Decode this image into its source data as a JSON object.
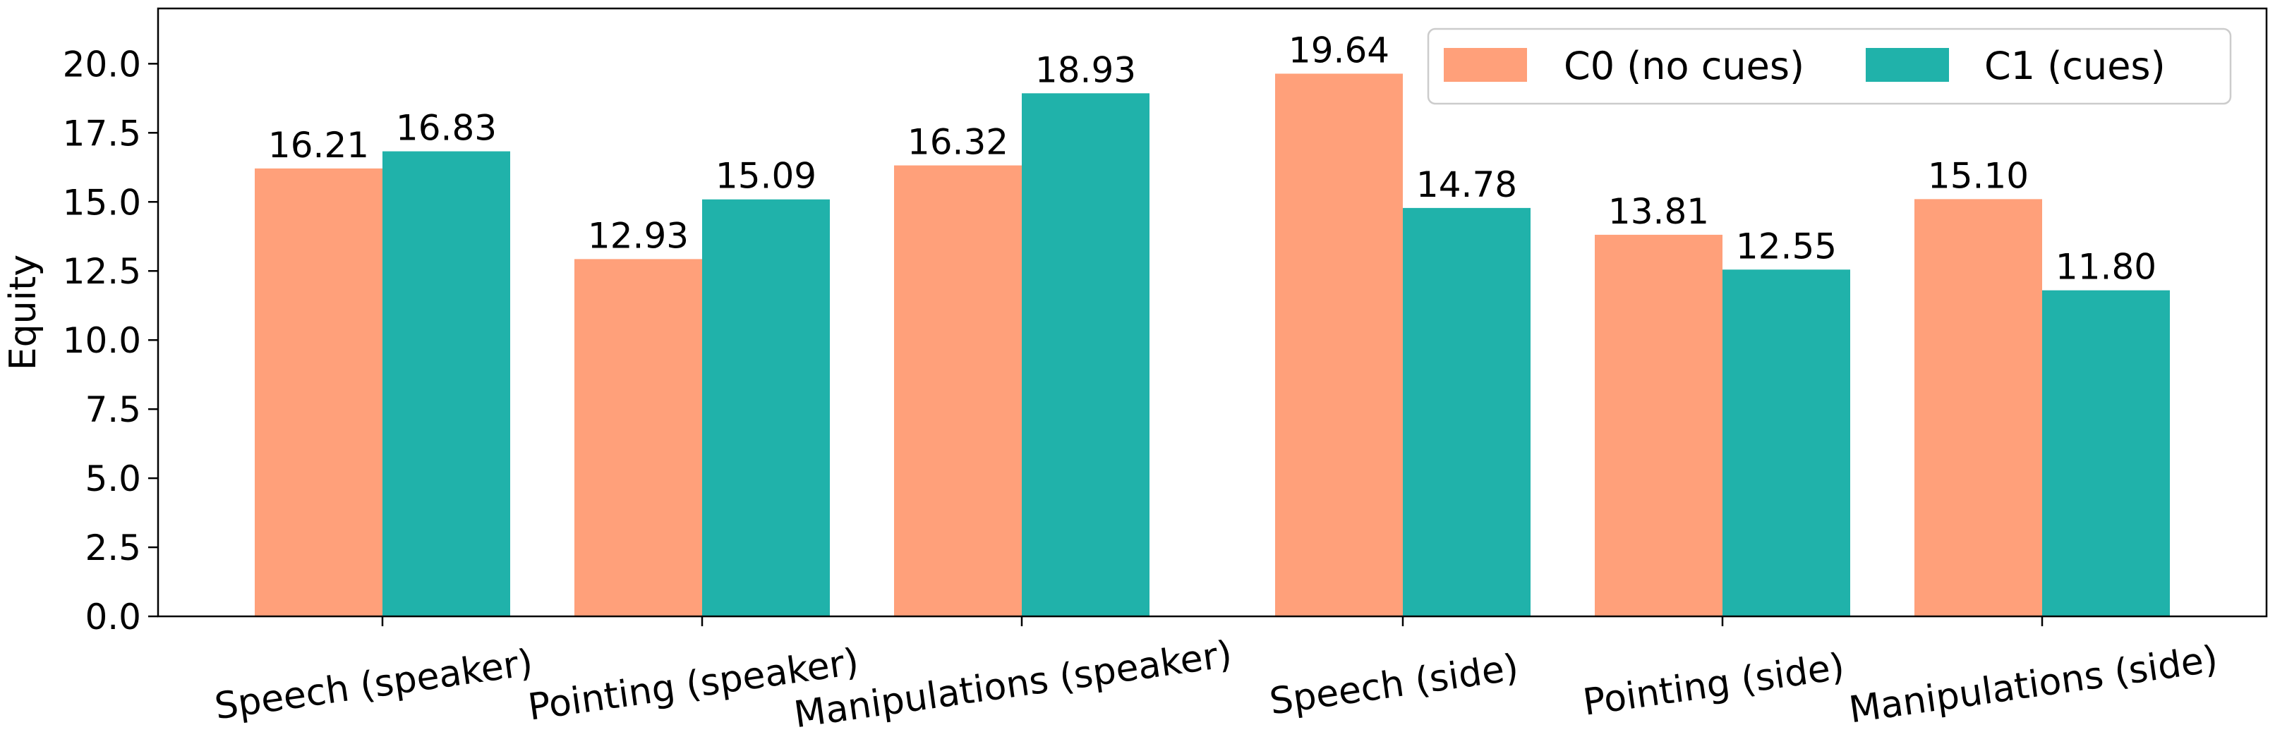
{
  "chart_data": {
    "type": "bar",
    "ylabel": "Equity",
    "xlabel": "",
    "title": "",
    "ylim": [
      0,
      22
    ],
    "yticks": [
      0.0,
      2.5,
      5.0,
      7.5,
      10.0,
      12.5,
      15.0,
      17.5,
      20.0
    ],
    "categories": [
      "Speech (speaker)",
      "Pointing (speaker)",
      "Manipulations (speaker)",
      "Speech (side)",
      "Pointing (side)",
      "Manipulations (side)"
    ],
    "series": [
      {
        "name": "C0 (no cues)",
        "color": "#FFA07A",
        "values": [
          16.21,
          12.93,
          16.32,
          19.64,
          13.81,
          15.1
        ],
        "labels": [
          "16.21",
          "12.93",
          "16.32",
          "19.64",
          "13.81",
          "15.10"
        ]
      },
      {
        "name": "C1 (cues)",
        "color": "#20B2AA",
        "values": [
          16.83,
          15.09,
          18.93,
          14.78,
          12.55,
          11.8
        ],
        "labels": [
          "16.83",
          "15.09",
          "18.93",
          "14.78",
          "12.55",
          "11.80"
        ]
      }
    ],
    "grid": false,
    "legend_position": "top-right",
    "tick_label_rotation_deg": -8
  }
}
